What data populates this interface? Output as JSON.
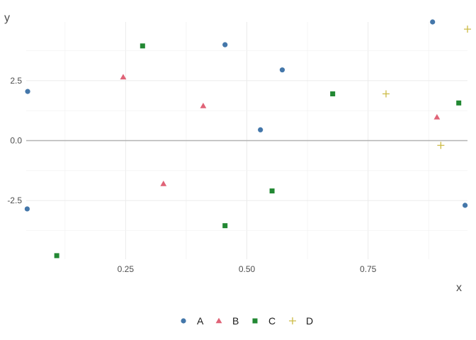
{
  "chart_data": {
    "type": "scatter",
    "title": "",
    "xlabel": "x",
    "ylabel": "y",
    "xlim": [
      0.045,
      0.955
    ],
    "ylim": [
      -4.95,
      4.95
    ],
    "x_ticks": [
      0.25,
      0.5,
      0.75
    ],
    "x_tick_labels": [
      "0.25",
      "0.50",
      "0.75"
    ],
    "y_ticks": [
      -2.5,
      0.0,
      2.5
    ],
    "y_tick_labels": [
      "-2.5",
      "0.0",
      "2.5"
    ],
    "grid": true,
    "zero_line": true,
    "legend_position": "bottom",
    "series": [
      {
        "name": "A",
        "marker": "circle",
        "color": "#4477AA",
        "points": [
          [
            0.048,
            2.05
          ],
          [
            0.047,
            -2.85
          ],
          [
            0.455,
            4.0
          ],
          [
            0.528,
            0.45
          ],
          [
            0.573,
            2.95
          ],
          [
            0.883,
            4.95
          ],
          [
            0.95,
            -2.7
          ]
        ]
      },
      {
        "name": "B",
        "marker": "triangle",
        "color": "#E06377",
        "points": [
          [
            0.245,
            2.65
          ],
          [
            0.328,
            -1.8
          ],
          [
            0.41,
            1.45
          ],
          [
            0.892,
            0.98
          ]
        ]
      },
      {
        "name": "C",
        "marker": "square",
        "color": "#228833",
        "points": [
          [
            0.108,
            -4.8
          ],
          [
            0.285,
            3.95
          ],
          [
            0.455,
            -3.55
          ],
          [
            0.552,
            -2.1
          ],
          [
            0.677,
            1.95
          ],
          [
            0.937,
            1.57
          ]
        ]
      },
      {
        "name": "D",
        "marker": "plus",
        "color": "#CCBB44",
        "points": [
          [
            0.787,
            1.95
          ],
          [
            0.9,
            -0.2
          ],
          [
            0.955,
            4.65
          ]
        ]
      }
    ]
  }
}
